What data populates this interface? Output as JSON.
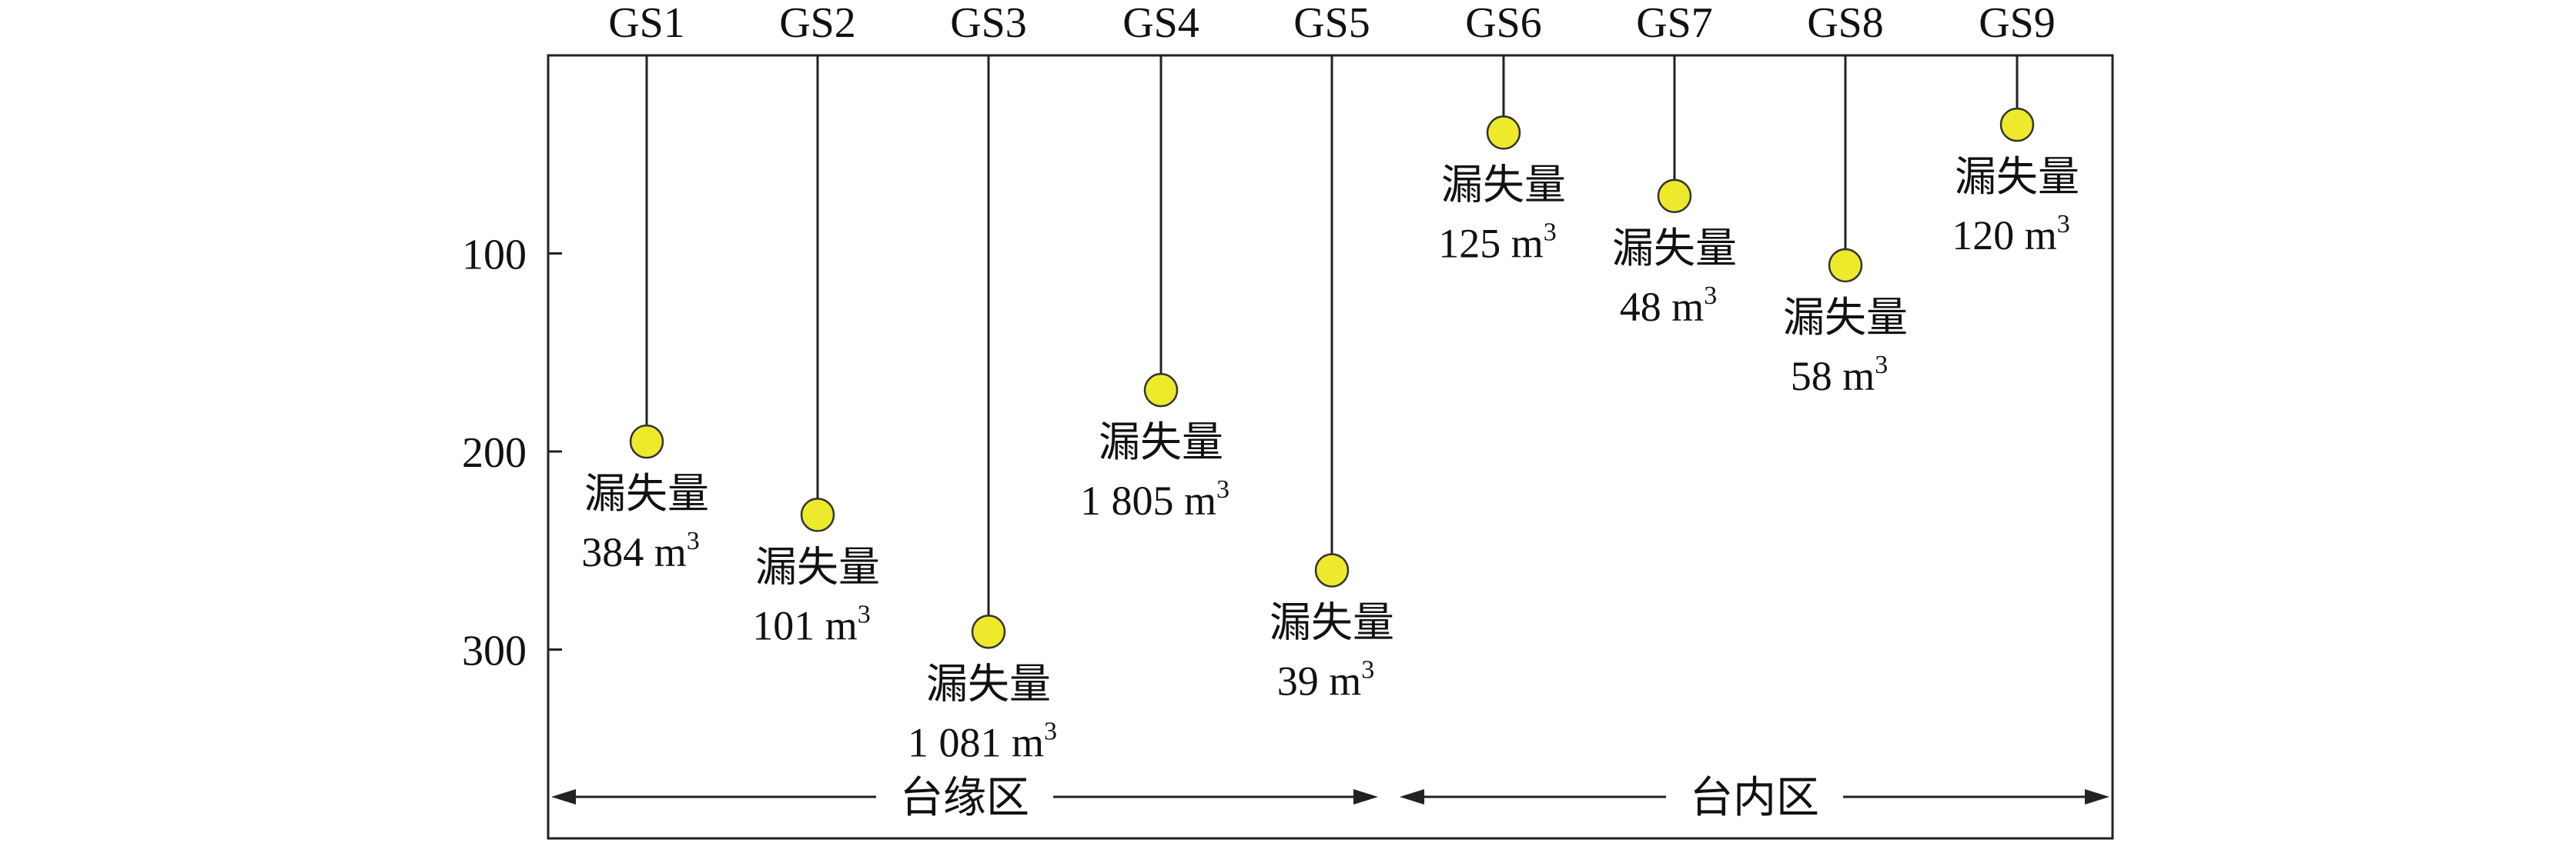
{
  "colors": {
    "marker_fill": "#ecea2a",
    "marker_stroke": "#333333",
    "line": "#222222",
    "frame": "#222222"
  },
  "depth_axis": {
    "ticks": [
      100,
      200,
      300
    ],
    "range": [
      0,
      390
    ]
  },
  "wells": [
    {
      "name": "GS1",
      "depth": 195,
      "loss_label": "漏失量",
      "loss_number": "384",
      "loss_unit": "m",
      "loss_exp": "3"
    },
    {
      "name": "GS2",
      "depth": 232,
      "loss_label": "漏失量",
      "loss_number": "101",
      "loss_unit": "m",
      "loss_exp": "3"
    },
    {
      "name": "GS3",
      "depth": 291,
      "loss_label": "漏失量",
      "loss_number": "1 081",
      "loss_unit": "m",
      "loss_exp": "3"
    },
    {
      "name": "GS4",
      "depth": 169,
      "loss_label": "漏失量",
      "loss_number": "1 805",
      "loss_unit": "m",
      "loss_exp": "3"
    },
    {
      "name": "GS5",
      "depth": 260,
      "loss_label": "漏失量",
      "loss_number": "39",
      "loss_unit": "m",
      "loss_exp": "3"
    },
    {
      "name": "GS6",
      "depth": 39,
      "loss_label": "漏失量",
      "loss_number": "125",
      "loss_unit": "m",
      "loss_exp": "3"
    },
    {
      "name": "GS7",
      "depth": 71,
      "loss_label": "漏失量",
      "loss_number": "48",
      "loss_unit": "m",
      "loss_exp": "3"
    },
    {
      "name": "GS8",
      "depth": 106,
      "loss_label": "漏失量",
      "loss_number": "58",
      "loss_unit": "m",
      "loss_exp": "3"
    },
    {
      "name": "GS9",
      "depth": 35,
      "loss_label": "漏失量",
      "loss_number": "120",
      "loss_unit": "m",
      "loss_exp": "3"
    }
  ],
  "zones": [
    {
      "label": "台缘区",
      "from_well": 0,
      "to_well": 4
    },
    {
      "label": "台内区",
      "from_well": 5,
      "to_well": 8
    }
  ]
}
